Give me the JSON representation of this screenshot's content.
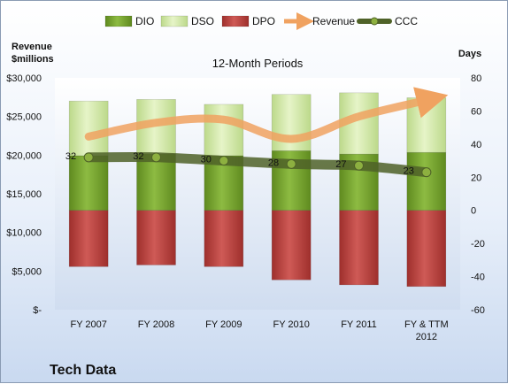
{
  "chart_data": {
    "type": "bar",
    "title": "12-Month Periods",
    "company": "Tech Data",
    "left_axis_label": [
      "Revenue",
      "$millions"
    ],
    "right_axis_label": "Days",
    "categories": [
      "FY 2007",
      "FY 2008",
      "FY 2009",
      "FY 2010",
      "FY 2011",
      [
        "FY & TTM",
        "2012"
      ]
    ],
    "left_ticks": [
      "$-",
      "$5,000",
      "$10,000",
      "$15,000",
      "$20,000",
      "$25,000",
      "$30,000"
    ],
    "left_ylim": [
      0,
      30000
    ],
    "right_ticks": [
      "-60",
      "-40",
      "-20",
      "0",
      "20",
      "40",
      "60",
      "80"
    ],
    "right_ylim": [
      -60,
      80
    ],
    "legend_position": "top",
    "series": [
      {
        "name": "DIO",
        "axis": "right",
        "values": [
          33,
          34,
          33,
          36,
          34,
          35
        ],
        "color": "#77a030"
      },
      {
        "name": "DSO",
        "axis": "right",
        "values": [
          33,
          33,
          31,
          34,
          37,
          33
        ],
        "color": "#d8ecb0"
      },
      {
        "name": "DPO",
        "axis": "right",
        "values": [
          -34,
          -33,
          -34,
          -42,
          -45,
          -46
        ],
        "color": "#c0504d"
      },
      {
        "name": "Revenue",
        "axis": "left",
        "values": [
          22400,
          24200,
          24600,
          22100,
          25000,
          27100
        ],
        "color": "#f0a260"
      },
      {
        "name": "CCC",
        "axis": "right",
        "values": [
          32,
          32,
          30,
          28,
          27,
          23
        ],
        "color": "#4f6228"
      }
    ],
    "data_labels": {
      "CCC": [
        "32",
        "32",
        "30",
        "28",
        "27",
        "23"
      ]
    },
    "grid": false
  }
}
